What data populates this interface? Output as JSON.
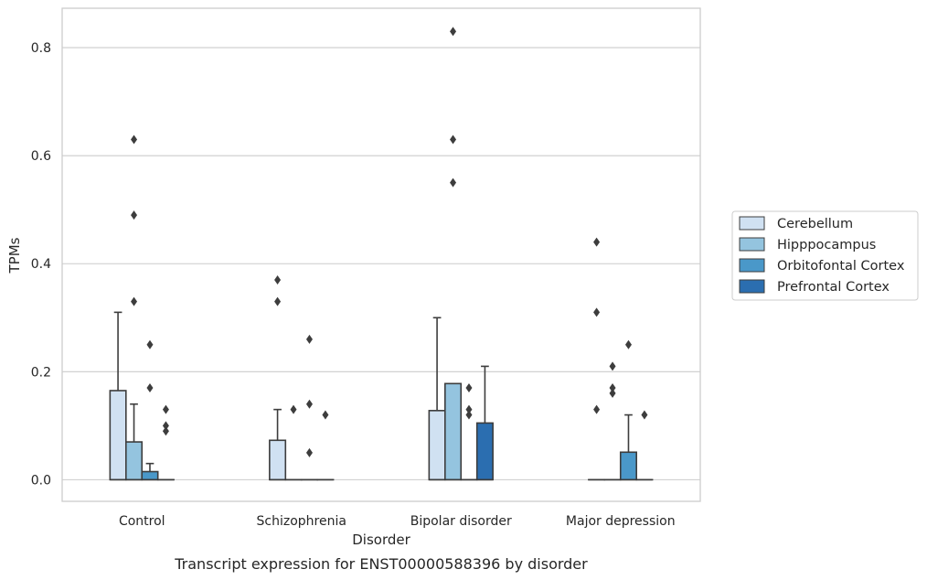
{
  "chart_data": {
    "type": "box",
    "xlabel": "Disorder",
    "ylabel": "TPMs",
    "caption": "Transcript expression for ENST00000588396 by disorder",
    "ylim": [
      -0.04,
      0.873
    ],
    "yticks": [
      0.0,
      0.2,
      0.4,
      0.6,
      0.8
    ],
    "ytick_labels": [
      "0.0",
      "0.2",
      "0.4",
      "0.6",
      "0.8"
    ],
    "grid": "horizontal",
    "legend_position": "right",
    "categories": [
      "Control",
      "Schizophrenia",
      "Bipolar disorder",
      "Major depression"
    ],
    "series": [
      {
        "name": "Cerebellum",
        "color": "#d0e1f2",
        "boxes": [
          {
            "q1": 0.0,
            "median": 0.0,
            "q3": 0.165,
            "whisker_low": 0.0,
            "whisker_high": 0.31,
            "outliers": []
          },
          {
            "q1": 0.0,
            "median": 0.0,
            "q3": 0.073,
            "whisker_low": 0.0,
            "whisker_high": 0.13,
            "outliers": [
              0.33,
              0.37
            ]
          },
          {
            "q1": 0.0,
            "median": 0.0,
            "q3": 0.128,
            "whisker_low": 0.0,
            "whisker_high": 0.3,
            "outliers": []
          },
          {
            "q1": 0.0,
            "median": 0.0,
            "q3": 0.0,
            "whisker_low": 0.0,
            "whisker_high": 0.0,
            "outliers": [
              0.13,
              0.31,
              0.44
            ]
          }
        ]
      },
      {
        "name": "Hipppocampus",
        "color": "#94c4df",
        "boxes": [
          {
            "q1": 0.0,
            "median": 0.0,
            "q3": 0.07,
            "whisker_low": 0.0,
            "whisker_high": 0.14,
            "outliers": [
              0.33,
              0.49,
              0.63
            ]
          },
          {
            "q1": 0.0,
            "median": 0.0,
            "q3": 0.0,
            "whisker_low": 0.0,
            "whisker_high": 0.0,
            "outliers": [
              0.13
            ]
          },
          {
            "q1": 0.0,
            "median": 0.0,
            "q3": 0.178,
            "whisker_low": 0.0,
            "whisker_high": 0.178,
            "outliers": [
              0.55,
              0.63,
              0.83
            ]
          },
          {
            "q1": 0.0,
            "median": 0.0,
            "q3": 0.0,
            "whisker_low": 0.0,
            "whisker_high": 0.0,
            "outliers": [
              0.16,
              0.17,
              0.21
            ]
          }
        ]
      },
      {
        "name": "Orbitofontal Cortex",
        "color": "#4a98c9",
        "boxes": [
          {
            "q1": 0.0,
            "median": 0.0,
            "q3": 0.015,
            "whisker_low": 0.0,
            "whisker_high": 0.03,
            "outliers": [
              0.17,
              0.25
            ]
          },
          {
            "q1": 0.0,
            "median": 0.0,
            "q3": 0.0,
            "whisker_low": 0.0,
            "whisker_high": 0.0,
            "outliers": [
              0.05,
              0.14,
              0.26
            ]
          },
          {
            "q1": 0.0,
            "median": 0.0,
            "q3": 0.0,
            "whisker_low": 0.0,
            "whisker_high": 0.0,
            "outliers": [
              0.12,
              0.13,
              0.17
            ]
          },
          {
            "q1": 0.0,
            "median": 0.0,
            "q3": 0.051,
            "whisker_low": 0.0,
            "whisker_high": 0.12,
            "outliers": [
              0.25
            ]
          }
        ]
      },
      {
        "name": "Prefrontal Cortex",
        "color": "#2b6eb0",
        "boxes": [
          {
            "q1": 0.0,
            "median": 0.0,
            "q3": 0.0,
            "whisker_low": 0.0,
            "whisker_high": 0.0,
            "outliers": [
              0.09,
              0.1,
              0.13
            ]
          },
          {
            "q1": 0.0,
            "median": 0.0,
            "q3": 0.0,
            "whisker_low": 0.0,
            "whisker_high": 0.0,
            "outliers": [
              0.12
            ]
          },
          {
            "q1": 0.0,
            "median": 0.0,
            "q3": 0.105,
            "whisker_low": 0.0,
            "whisker_high": 0.21,
            "outliers": []
          },
          {
            "q1": 0.0,
            "median": 0.0,
            "q3": 0.0,
            "whisker_low": 0.0,
            "whisker_high": 0.0,
            "outliers": [
              0.12
            ]
          }
        ]
      }
    ]
  }
}
